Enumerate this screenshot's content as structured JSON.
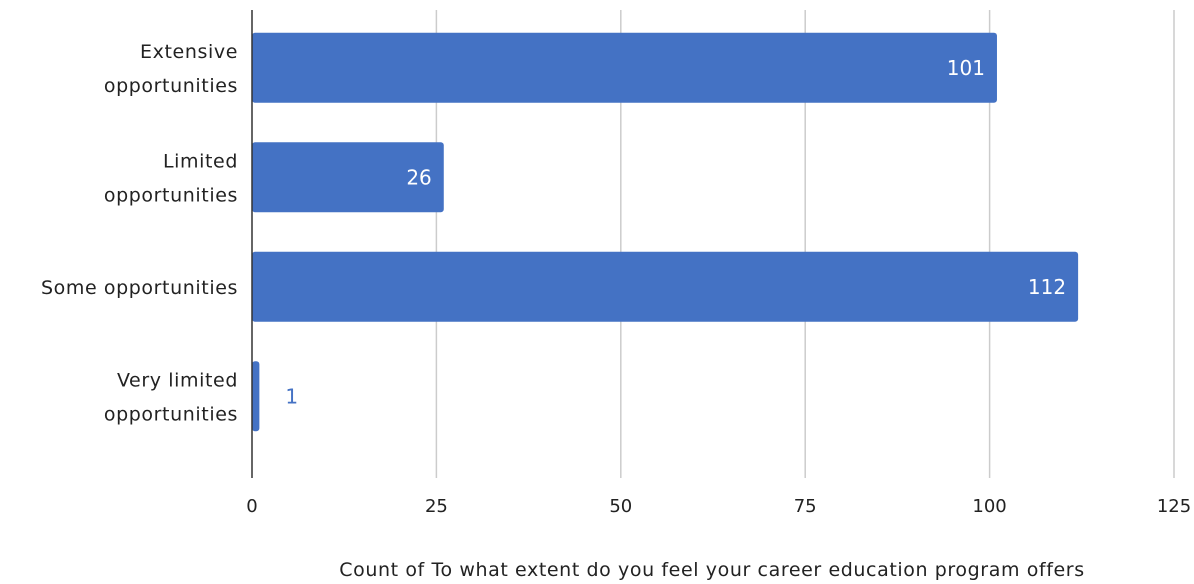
{
  "chart_data": {
    "type": "bar",
    "orientation": "horizontal",
    "categories": [
      [
        "Extensive",
        "opportunities"
      ],
      [
        "Limited",
        "opportunities"
      ],
      [
        "Some opportunities"
      ],
      [
        "Very limited",
        "opportunities"
      ]
    ],
    "values": [
      101,
      26,
      112,
      1
    ],
    "data_labels": [
      "101",
      "26",
      "112",
      "1"
    ],
    "xlim": [
      0,
      125
    ],
    "xticks": [
      0,
      25,
      50,
      75,
      100,
      125
    ],
    "xtick_labels": [
      "0",
      "25",
      "50",
      "75",
      "100",
      "125"
    ],
    "xlabel": "Count of To what extent do you feel your career education program offers",
    "ylabel": "",
    "grid": "vertical",
    "legend": "none",
    "colors": {
      "bar": "#4472c4",
      "label_inside": "#ffffff",
      "label_outside": "#4472c4",
      "grid": "#cccccc",
      "axis": "#333333",
      "text": "#222222"
    }
  }
}
